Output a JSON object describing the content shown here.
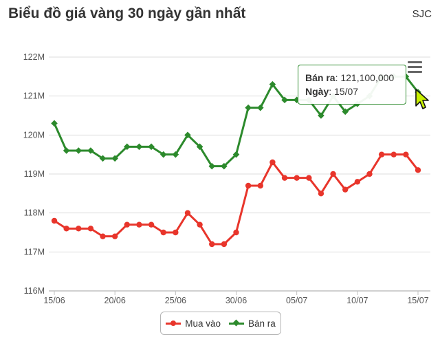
{
  "header": {
    "title": "Biểu đồ giá vàng 30 ngày gần nhất",
    "source": "SJC"
  },
  "tooltip": {
    "line1_label": "Bán ra",
    "line1_value": ": 121,100,000",
    "line2_label": "Ngày",
    "line2_value": ": 15/07"
  },
  "colors": {
    "buy": "#e8352b",
    "sell": "#2c8a2c",
    "grid": "#dddddd",
    "axis": "#c0c0c0",
    "cursor": "#c8f000"
  },
  "chart_data": {
    "type": "line",
    "title": "Biểu đồ giá vàng 30 ngày gần nhất",
    "xlabel": "",
    "ylabel": "",
    "x_tick_labels": [
      "15/06",
      "20/06",
      "25/06",
      "30/06",
      "05/07",
      "10/07",
      "15/07"
    ],
    "y_tick_labels": [
      "116M",
      "117M",
      "118M",
      "119M",
      "120M",
      "121M",
      "122M"
    ],
    "ylim": [
      116,
      122
    ],
    "x": [
      "15/06",
      "16/06",
      "17/06",
      "18/06",
      "19/06",
      "20/06",
      "21/06",
      "22/06",
      "23/06",
      "24/06",
      "25/06",
      "26/06",
      "27/06",
      "28/06",
      "29/06",
      "30/06",
      "01/07",
      "02/07",
      "03/07",
      "04/07",
      "05/07",
      "06/07",
      "07/07",
      "08/07",
      "09/07",
      "10/07",
      "11/07",
      "12/07",
      "13/07",
      "14/07",
      "15/07"
    ],
    "series": [
      {
        "name": "Mua vào",
        "marker": "circle",
        "values": [
          117.8,
          117.6,
          117.6,
          117.6,
          117.4,
          117.4,
          117.7,
          117.7,
          117.7,
          117.5,
          117.5,
          118.0,
          117.7,
          117.2,
          117.2,
          117.5,
          118.7,
          118.7,
          119.3,
          118.9,
          118.9,
          118.9,
          118.5,
          119.0,
          118.6,
          118.8,
          119.0,
          119.5,
          119.5,
          119.5,
          119.1
        ]
      },
      {
        "name": "Bán ra",
        "marker": "diamond",
        "values": [
          120.3,
          119.6,
          119.6,
          119.6,
          119.4,
          119.4,
          119.7,
          119.7,
          119.7,
          119.5,
          119.5,
          120.0,
          119.7,
          119.2,
          119.2,
          119.5,
          120.7,
          120.7,
          121.3,
          120.9,
          120.9,
          120.9,
          120.5,
          121.0,
          120.6,
          120.8,
          121.0,
          121.5,
          121.5,
          121.5,
          121.1
        ]
      }
    ],
    "grid": true,
    "legend": "bottom-center"
  }
}
